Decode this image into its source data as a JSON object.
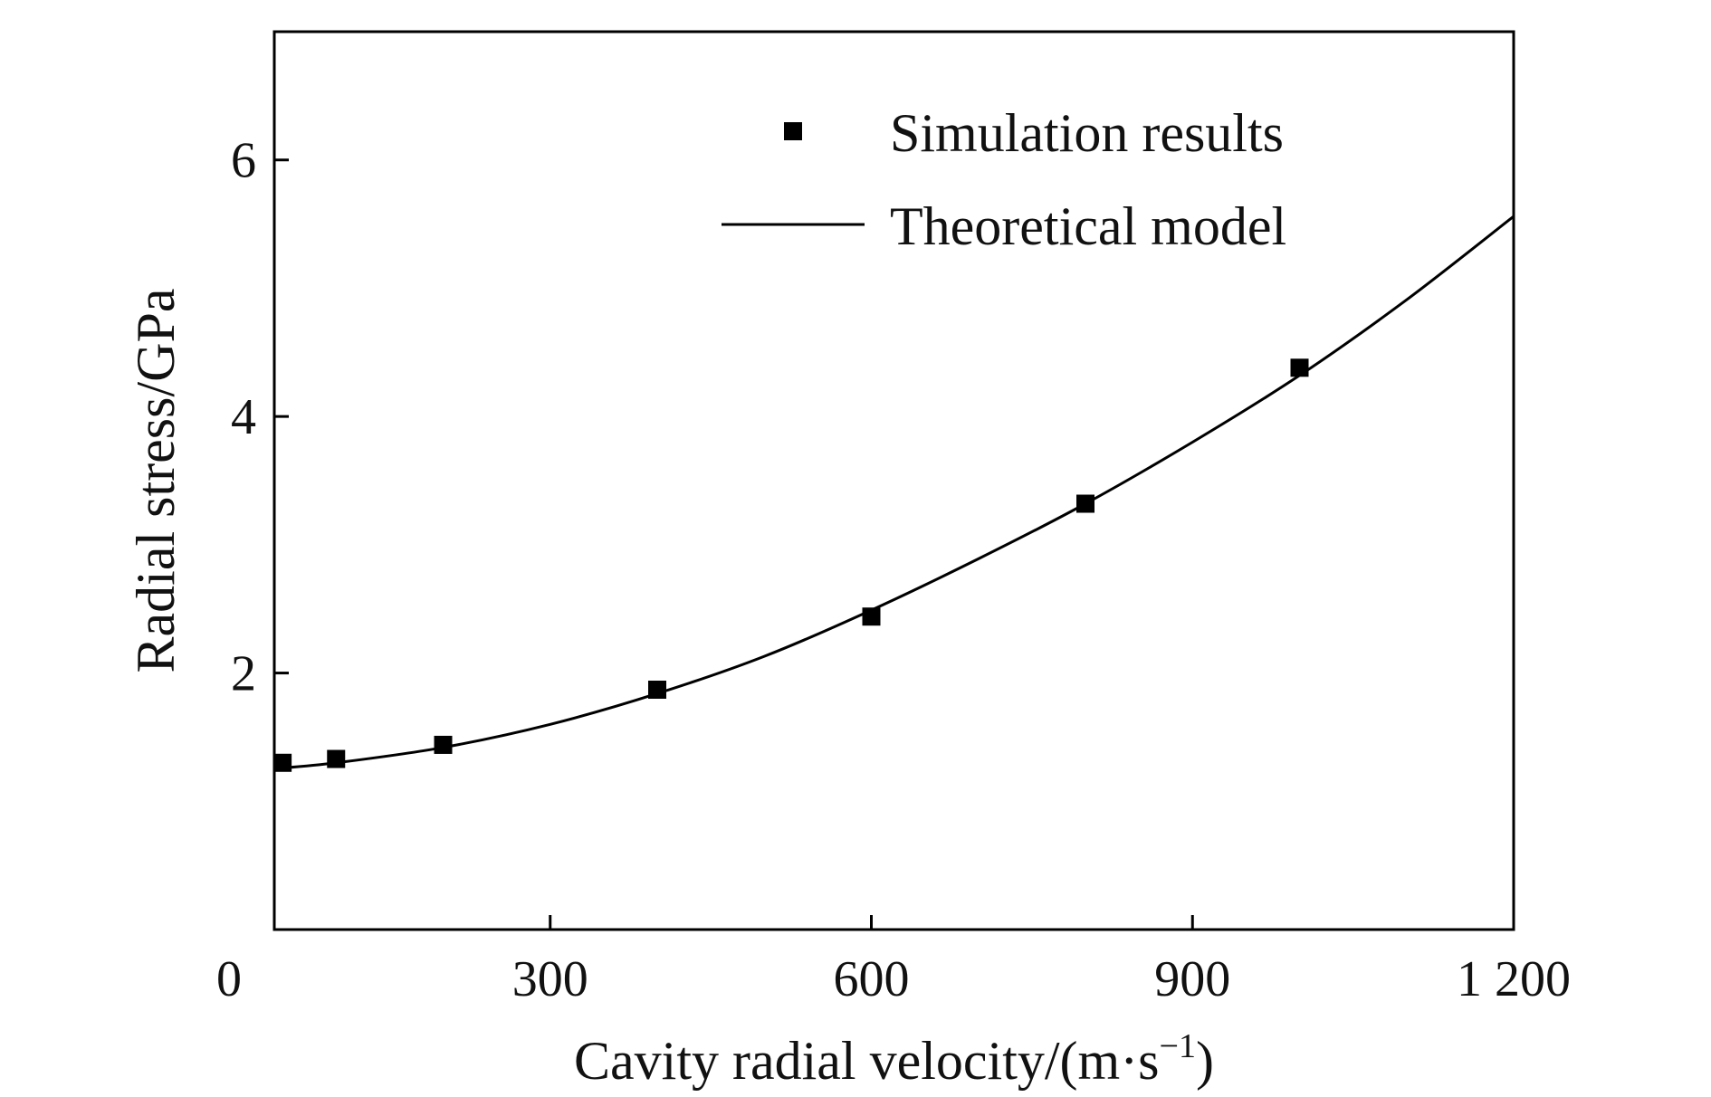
{
  "chart_data": {
    "type": "scatter",
    "xlabel": "Cavity radial velocity/(m·s",
    "xlabel_sup": "−1",
    "xlabel_close": ")",
    "ylabel": "Radial stress/GPa",
    "xlim": [
      0,
      1200
    ],
    "ylim": [
      0,
      7
    ],
    "x_ticks": [
      0,
      300,
      600,
      900,
      1200
    ],
    "x_tick_labels": [
      "0",
      "300",
      "600",
      "900",
      "1 200"
    ],
    "y_ticks": [
      2,
      4,
      6
    ],
    "y_tick_labels": [
      "2",
      "4",
      "6"
    ],
    "grid": false,
    "legend_position": "top-right",
    "series": [
      {
        "name": "Simulation results",
        "kind": "marker",
        "marker": "square",
        "color": "#000000",
        "x": [
          50,
          100,
          200,
          400,
          600,
          800,
          1000
        ],
        "y": [
          1.3,
          1.33,
          1.44,
          1.87,
          2.44,
          3.32,
          4.38
        ]
      },
      {
        "name": "Theoretical model",
        "kind": "line",
        "color": "#000000",
        "x": [
          0,
          100,
          200,
          300,
          400,
          500,
          600,
          700,
          800,
          900,
          1000,
          1100,
          1200
        ],
        "y": [
          1.22,
          1.3,
          1.42,
          1.6,
          1.84,
          2.13,
          2.49,
          2.89,
          3.32,
          3.8,
          4.32,
          4.91,
          5.56
        ]
      }
    ]
  }
}
